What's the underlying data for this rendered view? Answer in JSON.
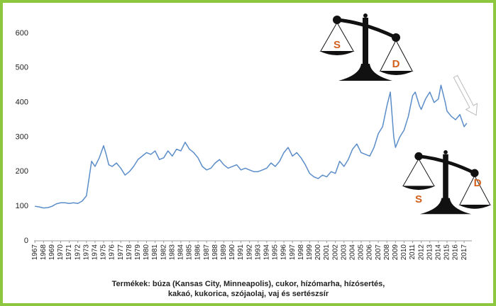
{
  "chart_data": {
    "type": "line",
    "x": [
      1967,
      1967.5,
      1968,
      1968.5,
      1969,
      1969.5,
      1970,
      1970.5,
      1971,
      1971.5,
      1972,
      1972.5,
      1973,
      1973.3,
      1973.6,
      1974,
      1974.5,
      1975,
      1975.3,
      1975.6,
      1976,
      1976.5,
      1977,
      1977.5,
      1978,
      1978.5,
      1979,
      1979.5,
      1980,
      1980.5,
      1981,
      1981.5,
      1982,
      1982.5,
      1983,
      1983.5,
      1984,
      1984.5,
      1985,
      1985.5,
      1986,
      1986.5,
      1987,
      1987.5,
      1988,
      1988.5,
      1989,
      1989.5,
      1990,
      1990.5,
      1991,
      1991.5,
      1992,
      1992.5,
      1993,
      1993.5,
      1994,
      1994.5,
      1995,
      1995.5,
      1996,
      1996.5,
      1997,
      1997.5,
      1998,
      1998.5,
      1999,
      1999.5,
      2000,
      2000.5,
      2001,
      2001.5,
      2002,
      2002.5,
      2003,
      2003.5,
      2004,
      2004.5,
      2005,
      2005.5,
      2006,
      2006.5,
      2007,
      2007.5,
      2008,
      2008.4,
      2008.8,
      2009,
      2009.5,
      2010,
      2010.5,
      2011,
      2011.3,
      2011.8,
      2012,
      2012.5,
      2013,
      2013.5,
      2014,
      2014.3,
      2014.8,
      2015,
      2015.5,
      2016,
      2016.5,
      2017,
      2017.3
    ],
    "series": [
      {
        "color": "#5b8dc9",
        "values": [
          100,
          98,
          95,
          96,
          100,
          107,
          110,
          110,
          108,
          110,
          108,
          115,
          130,
          180,
          230,
          215,
          240,
          275,
          250,
          220,
          215,
          225,
          210,
          190,
          200,
          215,
          235,
          245,
          255,
          250,
          260,
          235,
          240,
          260,
          245,
          265,
          260,
          285,
          265,
          255,
          240,
          215,
          205,
          210,
          225,
          235,
          220,
          210,
          215,
          220,
          205,
          210,
          205,
          200,
          200,
          205,
          210,
          225,
          215,
          230,
          255,
          270,
          245,
          255,
          240,
          220,
          195,
          185,
          180,
          190,
          185,
          200,
          195,
          230,
          215,
          235,
          265,
          280,
          255,
          250,
          245,
          270,
          310,
          330,
          390,
          430,
          300,
          270,
          300,
          320,
          360,
          420,
          430,
          390,
          380,
          410,
          430,
          400,
          410,
          450,
          400,
          375,
          360,
          350,
          365,
          330,
          340
        ]
      }
    ],
    "xlim": [
      1966.9,
      2017.9
    ],
    "xticks": [
      1967,
      1968,
      1969,
      1970,
      1971,
      1972,
      1973,
      1974,
      1975,
      1976,
      1977,
      1978,
      1979,
      1980,
      1981,
      1982,
      1983,
      1984,
      1985,
      1986,
      1987,
      1988,
      1989,
      1990,
      1991,
      1992,
      1993,
      1994,
      1995,
      1996,
      1997,
      1998,
      1999,
      2000,
      2001,
      2002,
      2003,
      2004,
      2005,
      2006,
      2007,
      2008,
      2009,
      2010,
      2011,
      2012,
      2013,
      2014,
      2015,
      2016,
      2017
    ],
    "ylim": [
      0,
      600
    ],
    "yticks": [
      0,
      100,
      200,
      300,
      400,
      500,
      600
    ],
    "annotations": [
      "S",
      "D",
      "S",
      "D"
    ],
    "caption": [
      "Termékek: búza (Kansas City, Minneapolis), cukor, hízómarha, hízósertés,",
      "kakaó, kukorica, szójaolaj, vaj és sertészsír"
    ]
  }
}
